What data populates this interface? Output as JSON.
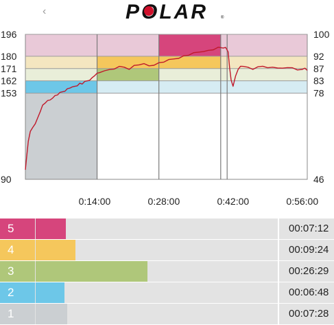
{
  "header": {
    "logo_text": "POLAR",
    "back_icon": "chevron-left-icon"
  },
  "chart_data": {
    "type": "line",
    "left_axis_ticks": [
      "196",
      "180",
      "171",
      "162",
      "153",
      "90"
    ],
    "right_axis_ticks": [
      "100",
      "92",
      "87",
      "83",
      "78",
      "46"
    ],
    "x_ticks": [
      "0:14:00",
      "0:28:00",
      "0:42:00",
      "0:56:00"
    ],
    "ylim": [
      90,
      196
    ],
    "xlim_minutes": [
      0,
      57
    ],
    "line_color": "#c0192a",
    "zone_colors": {
      "5": "#e9c9d8",
      "4": "#f4e6c0",
      "3": "#e9eed9",
      "2": "#d6ecf3"
    },
    "highlight_zone_colors": {
      "5": "#d6457c",
      "4": "#f5c75c",
      "3": "#afc77a",
      "2": "#6dc7e8",
      "1": "#cbcfd2"
    },
    "series": [
      {
        "values_x_minutes": [
          0,
          0.3,
          0.6,
          1,
          1.5,
          2,
          2.5,
          3,
          3.5,
          4,
          4.5,
          5,
          5.5,
          6,
          6.5,
          7,
          7.5,
          8,
          8.5,
          9,
          9.5,
          10,
          10.5,
          11,
          11.5,
          12,
          12.5,
          13,
          13.5,
          14,
          14.5,
          15,
          16,
          17,
          18,
          19,
          20,
          21,
          22,
          23,
          24,
          25,
          26,
          27,
          28,
          29,
          30,
          31,
          32,
          33,
          34,
          35,
          36,
          37,
          38,
          39,
          40,
          40.5,
          41,
          41.3,
          41.6,
          42,
          42.5,
          43,
          43.5,
          44,
          45,
          46,
          47,
          48,
          49,
          50,
          51,
          52,
          53,
          54,
          55,
          56,
          56.5,
          57
        ],
        "values_y_bpm": [
          97,
          108,
          118,
          125,
          128,
          130,
          135,
          140,
          144,
          146,
          147,
          148,
          150,
          151,
          152,
          153,
          154,
          155,
          156,
          157,
          157,
          158,
          159,
          160,
          160,
          161,
          162,
          163,
          164,
          166,
          167,
          168,
          170,
          170,
          171,
          172,
          172,
          171,
          173,
          174,
          174,
          173,
          174,
          175,
          176,
          177,
          178,
          179,
          180,
          181,
          182,
          183,
          184,
          184,
          185,
          186,
          186,
          187,
          183,
          172,
          162,
          158,
          166,
          170,
          173,
          172,
          172,
          171,
          172,
          173,
          171,
          172,
          172,
          171,
          172,
          171,
          170,
          171,
          171,
          170
        ]
      }
    ]
  },
  "zones": [
    {
      "number": "5",
      "time": "00:07:12",
      "fraction": 0.126,
      "color": "#d6457c"
    },
    {
      "number": "4",
      "time": "00:09:24",
      "fraction": 0.164,
      "color": "#f5c75c"
    },
    {
      "number": "3",
      "time": "00:26:29",
      "fraction": 0.463,
      "color": "#afc77a"
    },
    {
      "number": "2",
      "time": "00:06:48",
      "fraction": 0.119,
      "color": "#6dc7e8"
    },
    {
      "number": "1",
      "time": "00:07:28",
      "fraction": 0.131,
      "color": "#cbcfd2"
    }
  ]
}
